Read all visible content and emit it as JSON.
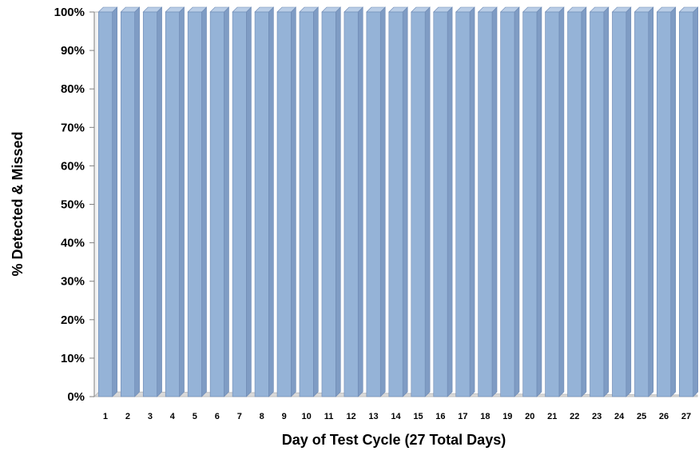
{
  "chart_data": {
    "type": "bar",
    "style": "3d-column",
    "categories": [
      "1",
      "2",
      "3",
      "4",
      "5",
      "6",
      "7",
      "8",
      "9",
      "10",
      "11",
      "12",
      "13",
      "14",
      "15",
      "16",
      "17",
      "18",
      "19",
      "20",
      "21",
      "22",
      "23",
      "24",
      "25",
      "26",
      "27"
    ],
    "series": [
      {
        "values": [
          100,
          100,
          100,
          100,
          100,
          100,
          100,
          100,
          100,
          100,
          100,
          100,
          100,
          100,
          100,
          100,
          100,
          100,
          100,
          100,
          100,
          100,
          100,
          100,
          100,
          100,
          100
        ]
      }
    ],
    "yticks": [
      "0%",
      "10%",
      "20%",
      "30%",
      "40%",
      "50%",
      "60%",
      "70%",
      "80%",
      "90%",
      "100%"
    ],
    "ylim": [
      0,
      100
    ],
    "ylabel": "% Detected & Missed",
    "xlabel": "Day of Test Cycle (27 Total Days)",
    "grid": false,
    "legend": "none",
    "colors": {
      "bar_front": "#95b3d7",
      "bar_side": "#7f9cc4",
      "bar_top": "#b9cde6",
      "floor": "#d9d9d9",
      "wall": "#ffffff"
    }
  }
}
